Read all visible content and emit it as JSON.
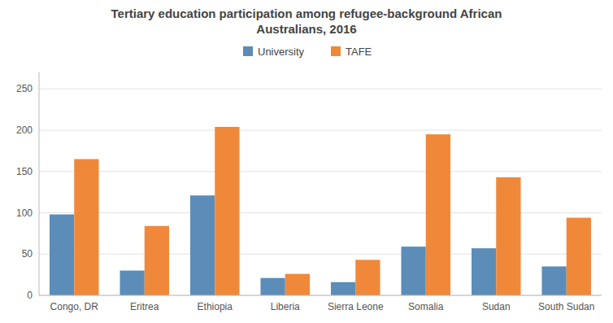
{
  "chart_data": {
    "type": "bar",
    "title": "Tertiary education participation among refugee-background African\nAustralians, 2016",
    "categories": [
      "Congo, DR",
      "Eritrea",
      "Ethiopia",
      "Liberia",
      "Sierra Leone",
      "Somalia",
      "Sudan",
      "South Sudan"
    ],
    "series": [
      {
        "name": "University",
        "color": "#5b8db8",
        "values": [
          98,
          30,
          121,
          21,
          16,
          59,
          57,
          35
        ]
      },
      {
        "name": "TAFE",
        "color": "#f0883a",
        "values": [
          165,
          84,
          204,
          26,
          43,
          195,
          143,
          94
        ]
      }
    ],
    "ylim": [
      0,
      270
    ],
    "yticks": [
      0,
      50,
      100,
      150,
      200,
      250
    ],
    "grid": true,
    "legend": "top"
  }
}
